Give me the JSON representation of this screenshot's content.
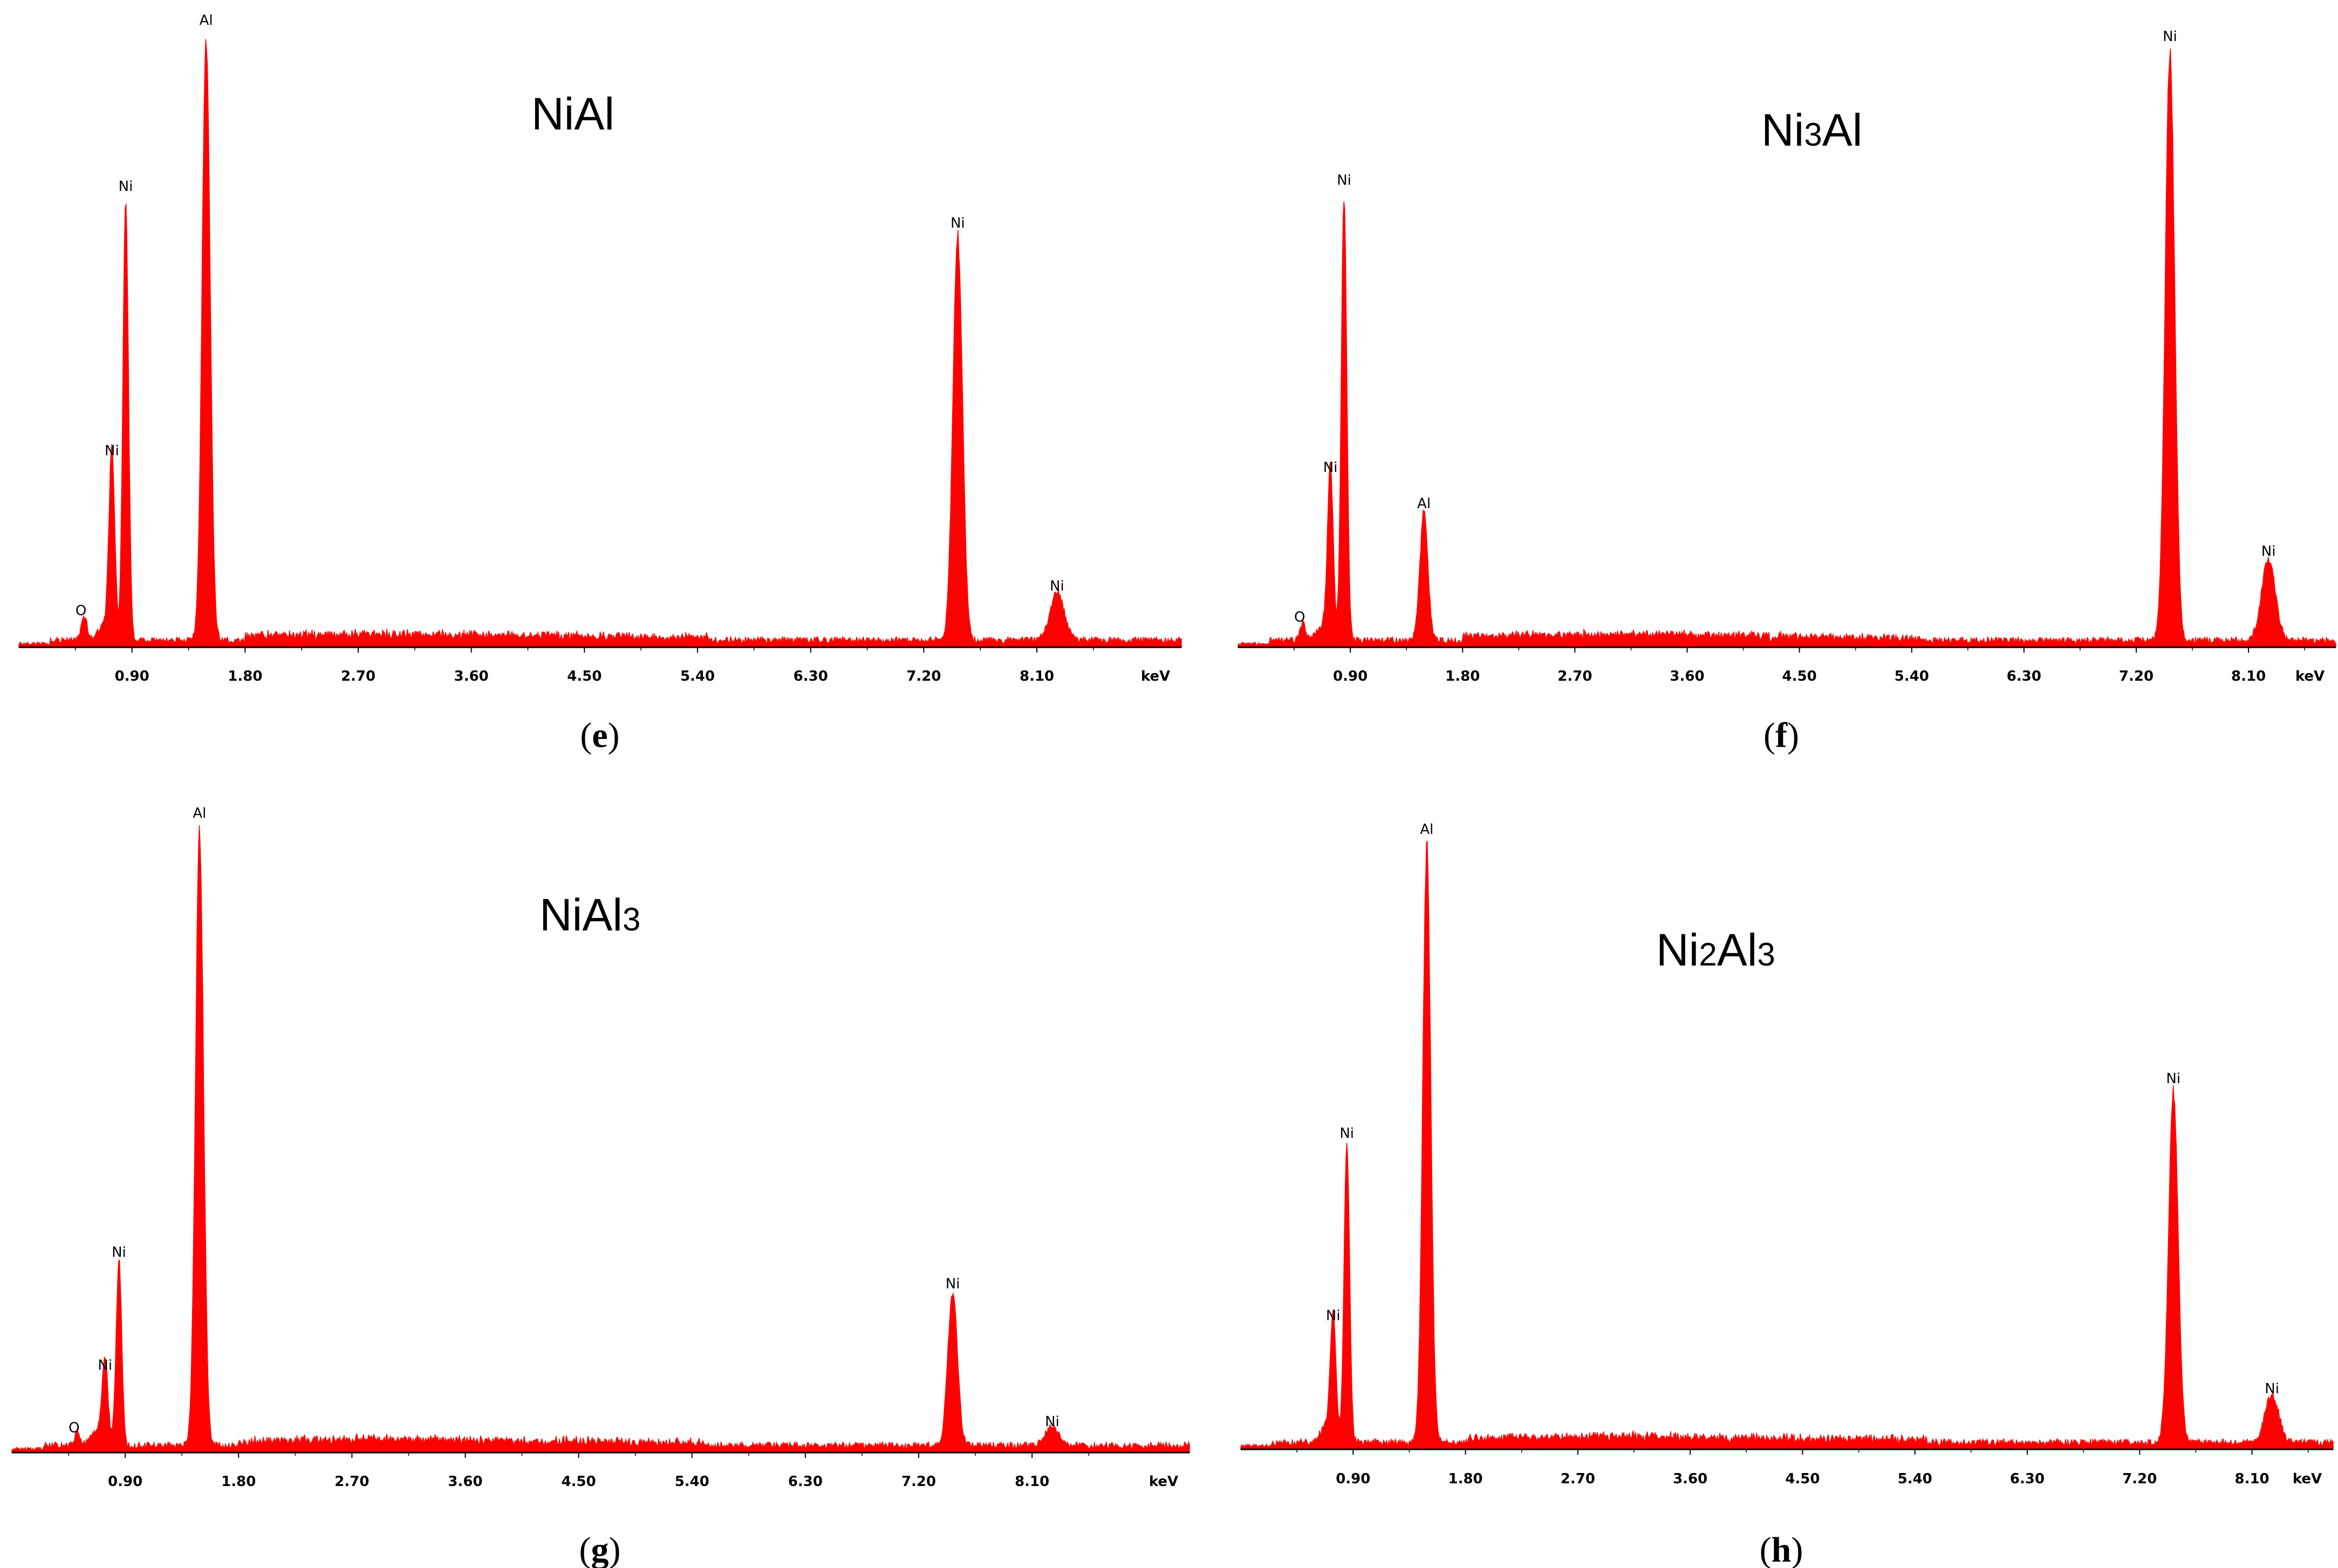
{
  "panels": [
    {
      "caption_letter": "e",
      "chart_data": {
        "type": "area",
        "title": "NiAl",
        "title_subscripts": [],
        "color": "#ff0000",
        "xlabel": "keV",
        "xticks": [
          "0.90",
          "1.80",
          "2.70",
          "3.60",
          "4.50",
          "5.40",
          "6.30",
          "7.20",
          "8.10"
        ],
        "xlim": [
          0.0,
          9.25
        ],
        "ylim": [
          0,
          100
        ],
        "peaks": [
          {
            "label": "O",
            "x": 0.52,
            "y": 4
          },
          {
            "label": "Ni",
            "x": 0.74,
            "y": 30
          },
          {
            "label": "Ni",
            "x": 0.85,
            "y": 73
          },
          {
            "label": "Al",
            "x": 1.49,
            "y": 100
          },
          {
            "label": "Ni",
            "x": 7.47,
            "y": 67
          },
          {
            "label": "Ni",
            "x": 8.26,
            "y": 8
          }
        ]
      }
    },
    {
      "caption_letter": "f",
      "chart_data": {
        "type": "area",
        "title": "Ni3Al",
        "title_subscripts": [
          2
        ],
        "color": "#ff0000",
        "xlabel": "keV",
        "xticks": [
          "0.90",
          "1.80",
          "2.70",
          "3.60",
          "4.50",
          "5.40",
          "6.30",
          "7.20",
          "8.10"
        ],
        "xlim": [
          0.0,
          8.8
        ],
        "ylim": [
          0,
          100
        ],
        "peaks": [
          {
            "label": "O",
            "x": 0.52,
            "y": 3
          },
          {
            "label": "Ni",
            "x": 0.74,
            "y": 28
          },
          {
            "label": "Ni",
            "x": 0.85,
            "y": 76
          },
          {
            "label": "Al",
            "x": 1.49,
            "y": 22
          },
          {
            "label": "Ni",
            "x": 7.47,
            "y": 100
          },
          {
            "label": "Ni",
            "x": 8.26,
            "y": 14
          }
        ]
      }
    },
    {
      "caption_letter": "g",
      "chart_data": {
        "type": "area",
        "title": "NiAl3",
        "title_subscripts": [
          4
        ],
        "color": "#ff0000",
        "xlabel": "keV",
        "xticks": [
          "0.90",
          "1.80",
          "2.70",
          "3.60",
          "4.50",
          "5.40",
          "6.30",
          "7.20",
          "8.10"
        ],
        "xlim": [
          0.0,
          9.35
        ],
        "ylim": [
          0,
          100
        ],
        "peaks": [
          {
            "label": "O",
            "x": 0.52,
            "y": 2
          },
          {
            "label": "Ni",
            "x": 0.74,
            "y": 12
          },
          {
            "label": "Ni",
            "x": 0.85,
            "y": 30
          },
          {
            "label": "Al",
            "x": 1.49,
            "y": 100
          },
          {
            "label": "Ni",
            "x": 7.47,
            "y": 25
          },
          {
            "label": "Ni",
            "x": 8.26,
            "y": 3
          }
        ]
      }
    },
    {
      "caption_letter": "h",
      "chart_data": {
        "type": "area",
        "title": "Ni2Al3",
        "title_subscripts": [
          2,
          5
        ],
        "color": "#ff0000",
        "xlabel": "keV",
        "xticks": [
          "0.90",
          "1.80",
          "2.70",
          "3.60",
          "4.50",
          "5.40",
          "6.30",
          "7.20",
          "8.10"
        ],
        "xlim": [
          0.0,
          8.75
        ],
        "ylim": [
          0,
          100
        ],
        "peaks": [
          {
            "label": "Ni",
            "x": 0.74,
            "y": 20
          },
          {
            "label": "Ni",
            "x": 0.85,
            "y": 50
          },
          {
            "label": "Al",
            "x": 1.49,
            "y": 100
          },
          {
            "label": "Ni",
            "x": 7.47,
            "y": 59
          },
          {
            "label": "Ni",
            "x": 8.26,
            "y": 8
          }
        ]
      }
    }
  ]
}
